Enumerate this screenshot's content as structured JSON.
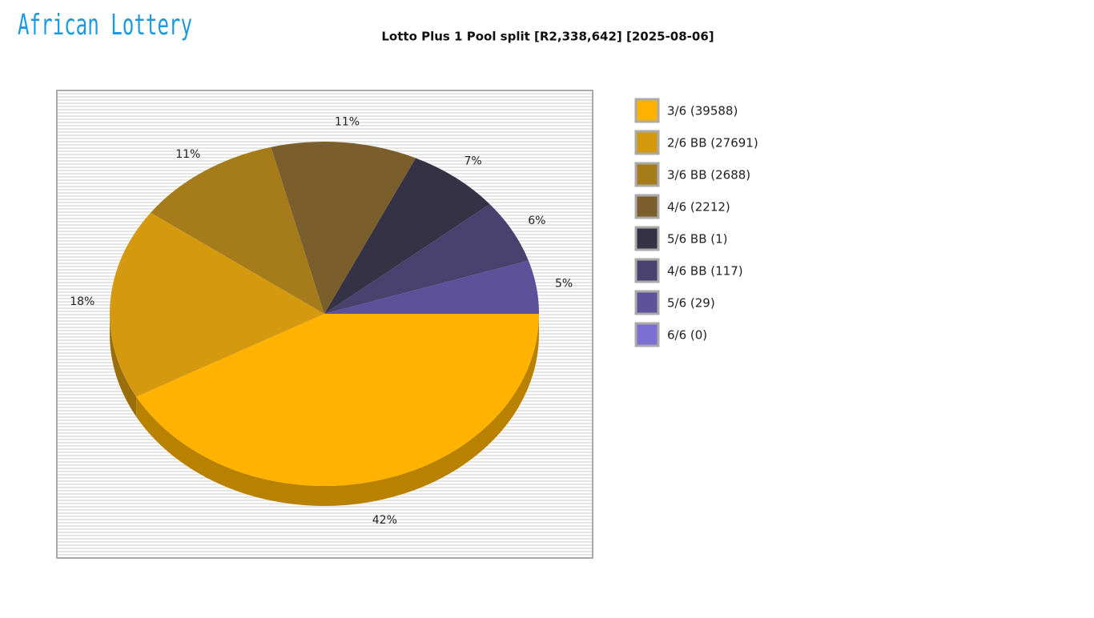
{
  "logo_text": "African Lottery",
  "chart_data": {
    "type": "pie",
    "title": "Lotto Plus 1 Pool split [R2,338,642] [2025-08-06]",
    "categories": [
      "3/6 (39588)",
      "2/6 BB (27691)",
      "3/6 BB (2688)",
      "4/6 (2212)",
      "5/6 BB (1)",
      "4/6 BB (117)",
      "5/6 (29)",
      "6/6 (0)"
    ],
    "values": [
      42,
      18,
      11,
      11,
      7,
      6,
      5,
      0
    ],
    "value_labels": [
      "42%",
      "18%",
      "11%",
      "11%",
      "7%",
      "6%",
      "5%",
      null
    ],
    "colors": [
      "#ffb300",
      "#d4990f",
      "#a67c1a",
      "#7a5f2c",
      "#353245",
      "#49416e",
      "#5d529a",
      "#7b6fd1"
    ],
    "legend": "right"
  }
}
